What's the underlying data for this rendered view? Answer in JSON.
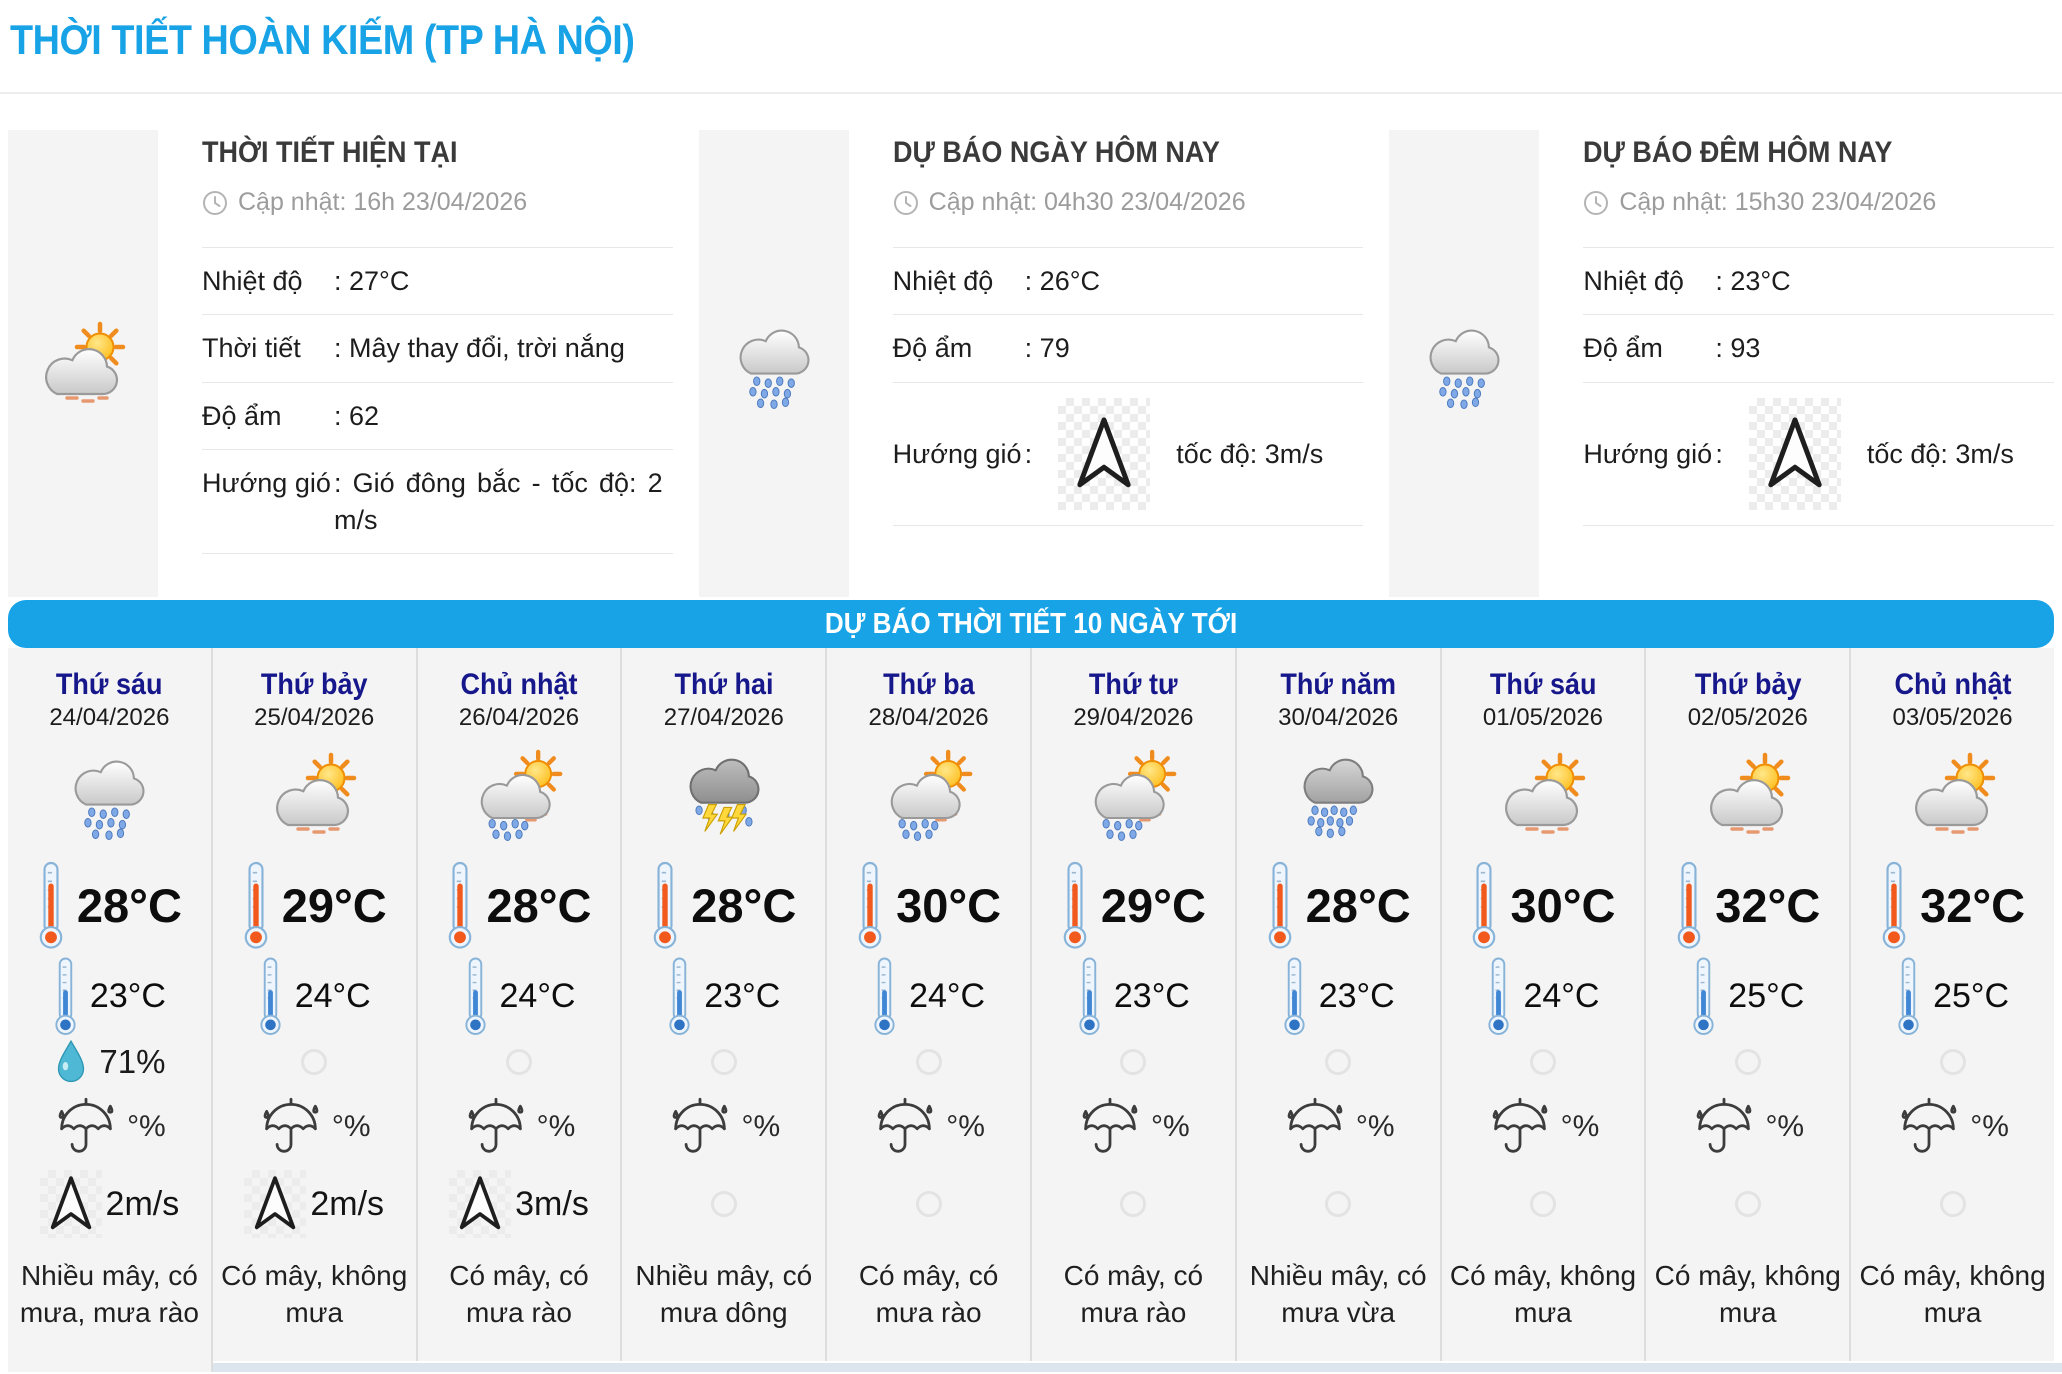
{
  "page": {
    "title": "THỜI TIẾT HOÀN KIẾM (TP HÀ NỘI)"
  },
  "colors": {
    "accent_blue": "#17a3e6",
    "day_name_navy": "#17178c",
    "panel_bg_gray": "#f4f4f4",
    "bottom_band": "#dce5ed",
    "max_temp_mercury": "#f2591c",
    "min_temp_mercury": "#3f86d4",
    "droplet_teal": "#4fb8d4"
  },
  "panels": [
    {
      "title": "THỜI TIẾT HIỆN TẠI",
      "updated": "Cập nhật: 16h 23/04/2026",
      "icon": "cloud-sun",
      "temp_label": "Nhiệt độ",
      "temp_value": ": 27°C",
      "weather_label": "Thời tiết",
      "weather_value": ": Mây thay đổi, trời nắng",
      "humidity_label": "Độ ẩm",
      "humidity_value": ": 62",
      "wind_label": "Hướng gió",
      "wind_value": ": Gió đông bắc - tốc độ: 2 m/s"
    },
    {
      "title": "DỰ BÁO NGÀY HÔM NAY",
      "updated": "Cập nhật: 04h30 23/04/2026",
      "icon": "rain-cloud",
      "temp_label": "Nhiệt độ",
      "temp_value": ": 26°C",
      "humidity_label": "Độ ẩm",
      "humidity_value": ": 79",
      "wind_label": "Hướng gió",
      "wind_colon": ":",
      "wind_speed": "tốc độ: 3m/s"
    },
    {
      "title": "DỰ BÁO ĐÊM HÔM NAY",
      "updated": "Cập nhật: 15h30 23/04/2026",
      "icon": "rain-cloud",
      "temp_label": "Nhiệt độ",
      "temp_value": ": 23°C",
      "humidity_label": "Độ ẩm",
      "humidity_value": ": 93",
      "wind_label": "Hướng gió",
      "wind_colon": ":",
      "wind_speed": "tốc độ: 3m/s"
    }
  ],
  "banner": {
    "title": "DỰ BÁO THỜI TIẾT 10 NGÀY TỚI"
  },
  "forecast": {
    "days": [
      {
        "day_name": "Thứ sáu",
        "date": "24/04/2026",
        "icon": "rain-cloud",
        "temp_max": "28°C",
        "temp_min": "23°C",
        "rain_percent": "71%",
        "umbrella": "°%",
        "wind": "2m/s",
        "desc": "Nhiều mây, có mưa, mưa rào"
      },
      {
        "day_name": "Thứ bảy",
        "date": "25/04/2026",
        "icon": "cloud-sun",
        "temp_max": "29°C",
        "temp_min": "24°C",
        "rain_percent": null,
        "umbrella": "°%",
        "wind": "2m/s",
        "desc": "Có mây, không mưa"
      },
      {
        "day_name": "Chủ nhật",
        "date": "26/04/2026",
        "icon": "sun-cloud-rain",
        "temp_max": "28°C",
        "temp_min": "24°C",
        "rain_percent": null,
        "umbrella": "°%",
        "wind": "3m/s",
        "desc": "Có mây, có mưa rào"
      },
      {
        "day_name": "Thứ hai",
        "date": "27/04/2026",
        "icon": "storm-cloud",
        "temp_max": "28°C",
        "temp_min": "23°C",
        "rain_percent": null,
        "umbrella": "°%",
        "wind": null,
        "desc": "Nhiều mây, có mưa dông"
      },
      {
        "day_name": "Thứ ba",
        "date": "28/04/2026",
        "icon": "sun-cloud-rain",
        "temp_max": "30°C",
        "temp_min": "24°C",
        "rain_percent": null,
        "umbrella": "°%",
        "wind": null,
        "desc": "Có mây, có mưa rào"
      },
      {
        "day_name": "Thứ tư",
        "date": "29/04/2026",
        "icon": "sun-cloud-rain",
        "temp_max": "29°C",
        "temp_min": "23°C",
        "rain_percent": null,
        "umbrella": "°%",
        "wind": null,
        "desc": "Có mây, có mưa rào"
      },
      {
        "day_name": "Thứ năm",
        "date": "30/04/2026",
        "icon": "gray-rain-cloud",
        "temp_max": "28°C",
        "temp_min": "23°C",
        "rain_percent": null,
        "umbrella": "°%",
        "wind": null,
        "desc": "Nhiều mây, có mưa vừa"
      },
      {
        "day_name": "Thứ sáu",
        "date": "01/05/2026",
        "icon": "cloud-sun",
        "temp_max": "30°C",
        "temp_min": "24°C",
        "rain_percent": null,
        "umbrella": "°%",
        "wind": null,
        "desc": "Có mây, không mưa"
      },
      {
        "day_name": "Thứ bảy",
        "date": "02/05/2026",
        "icon": "cloud-sun",
        "temp_max": "32°C",
        "temp_min": "25°C",
        "rain_percent": null,
        "umbrella": "°%",
        "wind": null,
        "desc": "Có mây, không mưa"
      },
      {
        "day_name": "Chủ nhật",
        "date": "03/05/2026",
        "icon": "cloud-sun",
        "temp_max": "32°C",
        "temp_min": "25°C",
        "rain_percent": null,
        "umbrella": "°%",
        "wind": null,
        "desc": "Có mây, không mưa"
      }
    ]
  }
}
